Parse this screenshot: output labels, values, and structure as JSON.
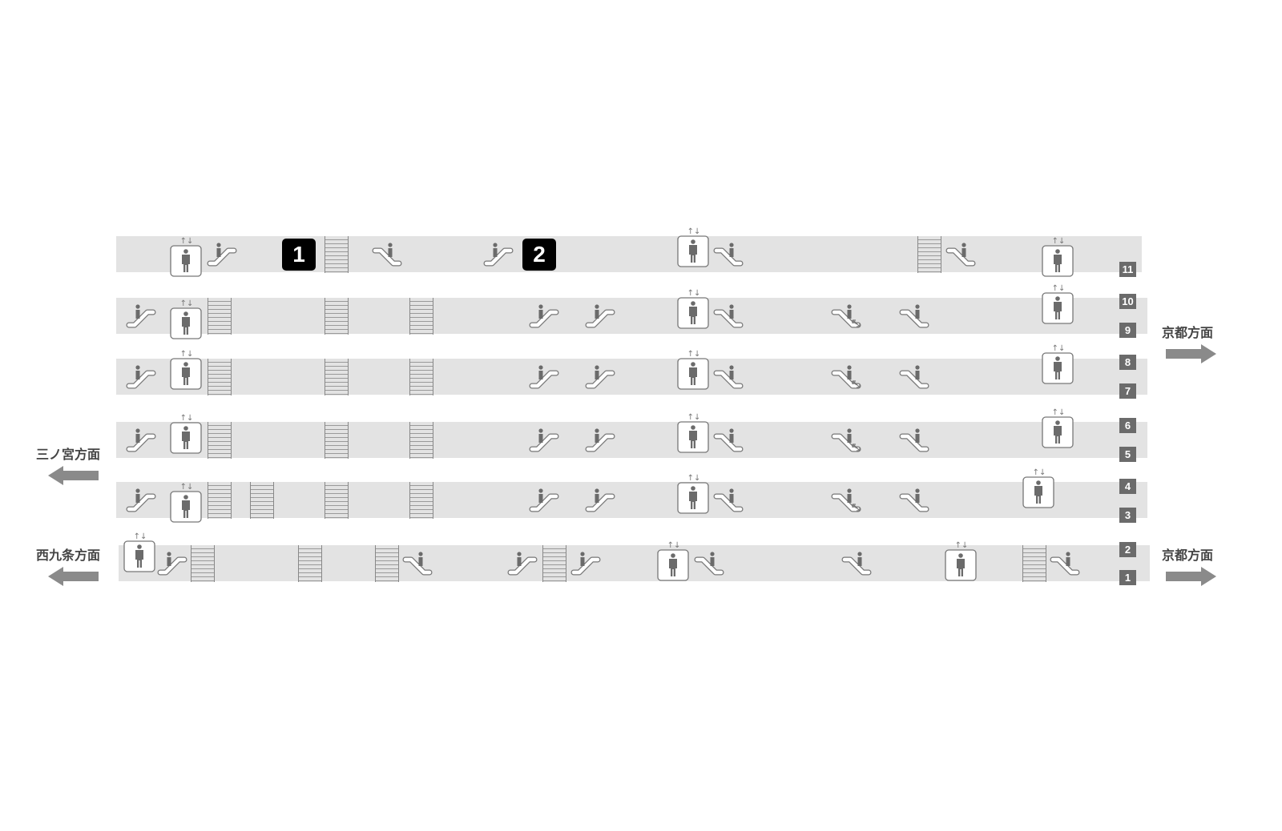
{
  "diagram": {
    "platform_numbers": [
      "11",
      "10",
      "9",
      "8",
      "7",
      "6",
      "5",
      "4",
      "3",
      "2",
      "1"
    ],
    "exits": [
      "1",
      "2"
    ],
    "directions": {
      "kyoto_upper": "京都方面",
      "sannomiya": "三ノ宮方面",
      "nishikujo": "西九条方面",
      "kyoto_lower": "京都方面"
    },
    "icons": [
      "elevator-icon",
      "escalator-up-icon",
      "escalator-down-icon",
      "escalator-bidirectional-icon",
      "stairs-icon"
    ],
    "colors": {
      "band": "#e3e3e3",
      "icon": "#6b6b6b",
      "exit_badge": "#000000",
      "platform_badge": "#6b6b6b",
      "arrow": "#8a8a8a"
    }
  }
}
